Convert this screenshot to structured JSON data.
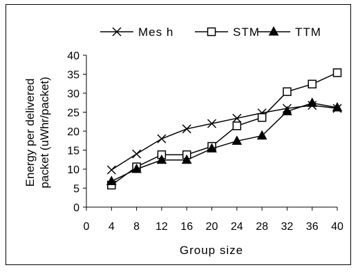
{
  "chart_data": {
    "type": "line",
    "title": "",
    "xlabel": "Group size",
    "ylabel": [
      "Energy per delivered",
      "packet (uWhr/packet)"
    ],
    "x_ticks": [
      "0",
      "4",
      "8",
      "12",
      "16",
      "20",
      "24",
      "28",
      "32",
      "36",
      "40"
    ],
    "y_ticks": [
      "0",
      "5",
      "10",
      "15",
      "20",
      "25",
      "30",
      "35",
      "40"
    ],
    "xlim": [
      0,
      40
    ],
    "ylim": [
      0,
      40
    ],
    "grid": false,
    "legend_position": "top",
    "x": [
      4,
      8,
      12,
      16,
      20,
      24,
      28,
      32,
      36,
      40
    ],
    "series": [
      {
        "name": "Mes h",
        "marker": "x",
        "values": [
          9.8,
          14.0,
          18.0,
          20.6,
          22.0,
          23.4,
          24.8,
          26.0,
          26.8,
          26.0
        ]
      },
      {
        "name": "STM",
        "marker": "square",
        "values": [
          5.8,
          10.6,
          13.8,
          13.8,
          16.0,
          21.4,
          23.6,
          30.4,
          32.4,
          35.4
        ]
      },
      {
        "name": "TTM",
        "marker": "triangle",
        "values": [
          6.8,
          10.0,
          12.4,
          12.4,
          15.4,
          17.4,
          18.8,
          25.2,
          27.4,
          26.2
        ]
      }
    ]
  }
}
